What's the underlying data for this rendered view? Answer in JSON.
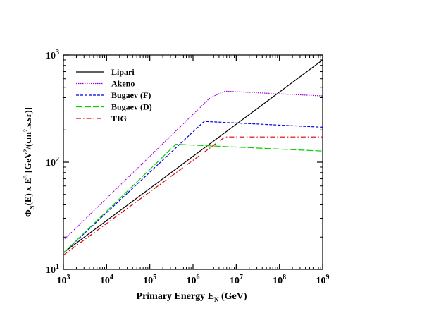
{
  "chart_data": {
    "type": "line",
    "title": "",
    "xlabel": "Primary Energy E_N (GeV)",
    "ylabel": "Φ_N(E) x E³ [GeV²/(cm².s.sr)]",
    "x_scale": "log",
    "y_scale": "log",
    "xlim": [
      1000,
      1000000000
    ],
    "ylim": [
      10,
      1000
    ],
    "x_ticks": [
      {
        "base": "10",
        "exp": "3",
        "value": 1000
      },
      {
        "base": "10",
        "exp": "4",
        "value": 10000
      },
      {
        "base": "10",
        "exp": "5",
        "value": 100000
      },
      {
        "base": "10",
        "exp": "6",
        "value": 1000000
      },
      {
        "base": "10",
        "exp": "7",
        "value": 10000000
      },
      {
        "base": "10",
        "exp": "8",
        "value": 100000000
      },
      {
        "base": "10",
        "exp": "9",
        "value": 1000000000
      }
    ],
    "y_ticks": [
      {
        "base": "10",
        "exp": "1",
        "value": 10
      },
      {
        "base": "10",
        "exp": "2",
        "value": 100
      },
      {
        "base": "10",
        "exp": "3",
        "value": 1000
      }
    ],
    "grid": false,
    "legend_position": "top-left",
    "series": [
      {
        "name": "Lipari",
        "color": "#000000",
        "dash": "solid",
        "x": [
          1000,
          1000000000
        ],
        "y": [
          14.3,
          900
        ]
      },
      {
        "name": "Akeno",
        "color": "#a000e0",
        "dash": "dotted",
        "x": [
          1000,
          2500000,
          5500000,
          1000000000
        ],
        "y": [
          18.7,
          400,
          460,
          415
        ]
      },
      {
        "name": "Bugaev (F)",
        "color": "#0000e0",
        "dash": "dashed",
        "x": [
          1000,
          1800000,
          1000000000
        ],
        "y": [
          14.2,
          240,
          212
        ]
      },
      {
        "name": "Bugaev (D)",
        "color": "#00d000",
        "dash": "longdash",
        "x": [
          1000,
          400000,
          1000000000
        ],
        "y": [
          14.2,
          147,
          127
        ]
      },
      {
        "name": "TIG",
        "color": "#e00000",
        "dash": "dashdot",
        "x": [
          1000,
          5500000,
          1000000000
        ],
        "y": [
          13.6,
          172,
          172
        ]
      }
    ]
  }
}
